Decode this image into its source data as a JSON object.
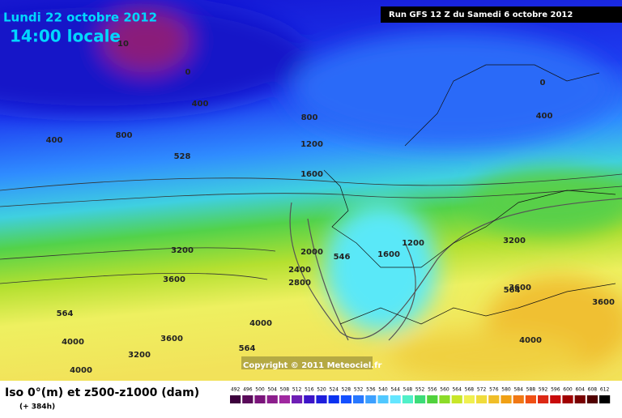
{
  "header": {
    "date": "Lundi 22 octobre 2012",
    "time": "14:00 locale",
    "run": "Run GFS 12 Z du Samedi 6 octobre 2012"
  },
  "map": {
    "copyright": "Copyright © 2011 Meteociel.fr",
    "contour_labels": [
      "10",
      "0",
      "400",
      "400",
      "800",
      "528",
      "800",
      "1200",
      "1600",
      "3200",
      "3600",
      "2000",
      "2400",
      "2800",
      "546",
      "1600",
      "1200",
      "3200",
      "564",
      "3600",
      "3600",
      "4000",
      "564",
      "4000",
      "4000",
      "3600",
      "3200",
      "564",
      "4000",
      "0",
      "400"
    ]
  },
  "footer": {
    "title": "Iso 0°(m) et z500-z1000 (dam)",
    "lead": "(+ 384h)"
  },
  "legend": {
    "labels": [
      "492",
      "496",
      "500",
      "504",
      "508",
      "512",
      "516",
      "520",
      "524",
      "528",
      "532",
      "536",
      "540",
      "544",
      "548",
      "552",
      "556",
      "560",
      "564",
      "568",
      "572",
      "576",
      "580",
      "584",
      "588",
      "592",
      "596",
      "600",
      "604",
      "608",
      "612"
    ],
    "colors": [
      "#3c003c",
      "#5a0a5a",
      "#7a147a",
      "#8c1e8c",
      "#a028a0",
      "#6e1eb4",
      "#3c14c8",
      "#1e1edc",
      "#0a32f0",
      "#1450ff",
      "#2878ff",
      "#3ca0ff",
      "#50c8ff",
      "#64e6ff",
      "#50f0c8",
      "#3cdc78",
      "#50d23c",
      "#8cdc28",
      "#c8e628",
      "#f0f050",
      "#f0dc3c",
      "#f0be28",
      "#f0a014",
      "#f07814",
      "#f05014",
      "#dc2814",
      "#c80a0a",
      "#a00000",
      "#780000",
      "#500000",
      "#000000"
    ]
  }
}
